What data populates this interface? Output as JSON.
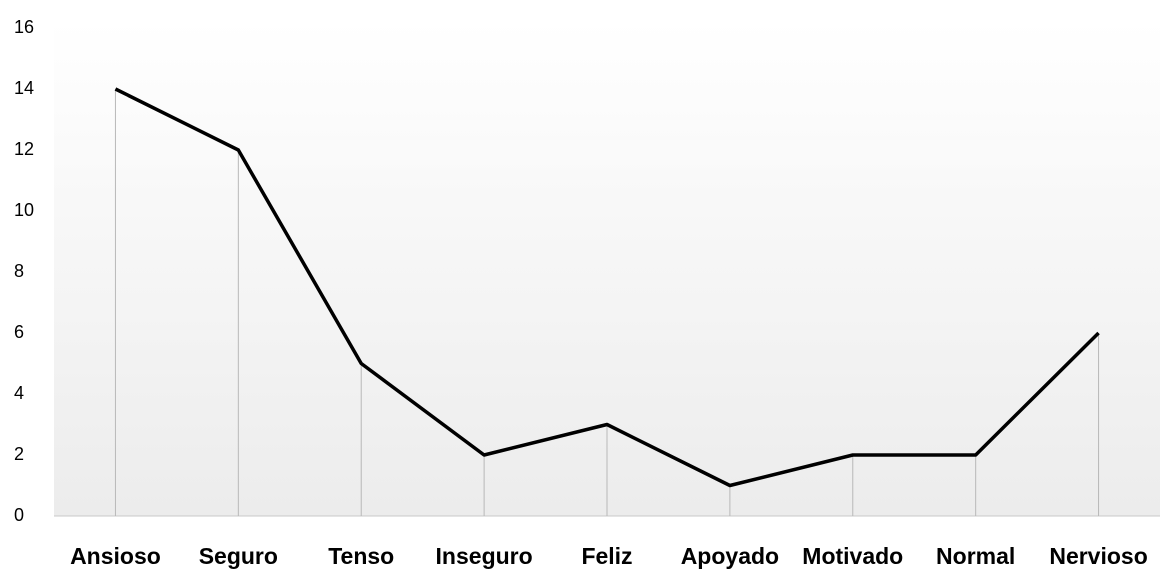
{
  "chart_data": {
    "type": "line",
    "categories": [
      "Ansioso",
      "Seguro",
      "Tenso",
      "Inseguro",
      "Feliz",
      "Apoyado",
      "Motivado",
      "Normal",
      "Nervioso"
    ],
    "series": [
      {
        "color": "#000000",
        "values": [
          14,
          12,
          5,
          2,
          3,
          1,
          2,
          2,
          6
        ]
      }
    ],
    "ylim": [
      0,
      16
    ],
    "yticks": [
      0,
      2,
      4,
      6,
      8,
      10,
      12,
      14,
      16
    ],
    "grid": false,
    "drop_lines": true
  }
}
